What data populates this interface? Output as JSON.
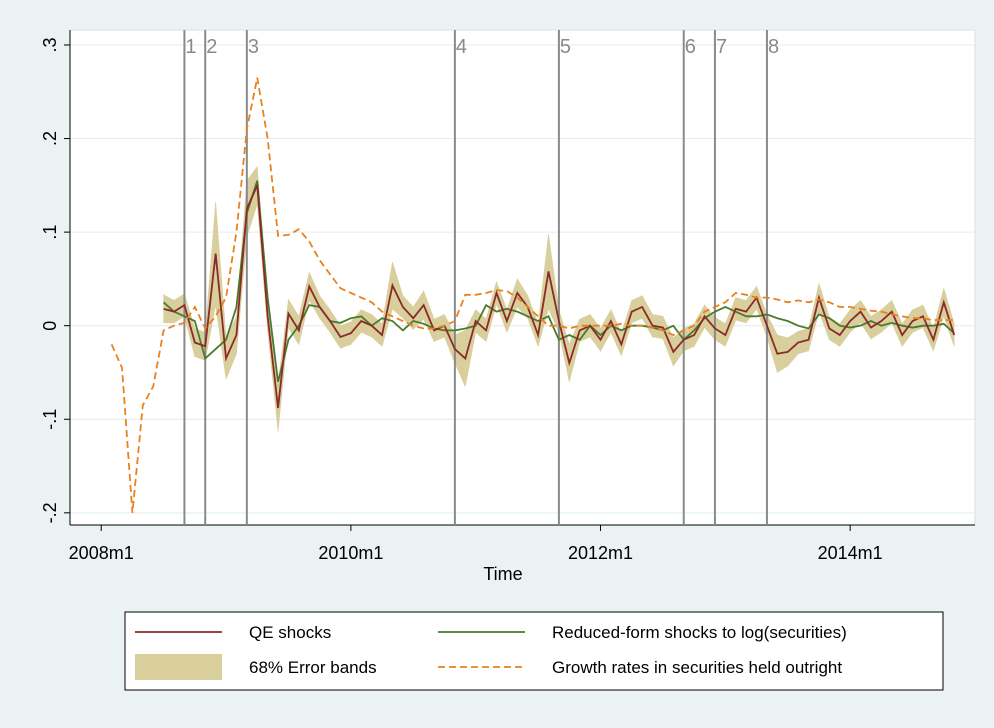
{
  "chart_data": {
    "type": "line",
    "x_label": "Time",
    "x": [
      "2008m2",
      "2008m3",
      "2008m4",
      "2008m5",
      "2008m6",
      "2008m7",
      "2008m8",
      "2008m9",
      "2008m10",
      "2008m11",
      "2008m12",
      "2009m1",
      "2009m2",
      "2009m3",
      "2009m4",
      "2009m5",
      "2009m6",
      "2009m7",
      "2009m8",
      "2009m9",
      "2009m10",
      "2009m11",
      "2009m12",
      "2010m1",
      "2010m2",
      "2010m3",
      "2010m4",
      "2010m5",
      "2010m6",
      "2010m7",
      "2010m8",
      "2010m9",
      "2010m10",
      "2010m11",
      "2010m12",
      "2011m1",
      "2011m2",
      "2011m3",
      "2011m4",
      "2011m5",
      "2011m6",
      "2011m7",
      "2011m8",
      "2011m9",
      "2011m10",
      "2011m11",
      "2011m12",
      "2012m1",
      "2012m2",
      "2012m3",
      "2012m4",
      "2012m5",
      "2012m6",
      "2012m7",
      "2012m8",
      "2012m9",
      "2012m10",
      "2012m11",
      "2012m12",
      "2013m1",
      "2013m2",
      "2013m3",
      "2013m4",
      "2013m5",
      "2013m6",
      "2013m7",
      "2013m8",
      "2013m9",
      "2013m10",
      "2013m11",
      "2013m12",
      "2014m1",
      "2014m2",
      "2014m3",
      "2014m4",
      "2014m5",
      "2014m6",
      "2014m7",
      "2014m8",
      "2014m9",
      "2014m10",
      "2014m11"
    ],
    "xlim": [
      "2007m10",
      "2015m1"
    ],
    "xticks": [
      "2008m1",
      "2010m1",
      "2012m1",
      "2014m1"
    ],
    "ylim": [
      -0.213,
      0.316
    ],
    "yticks": [
      {
        "value": -0.2,
        "label": "-.2"
      },
      {
        "value": -0.1,
        "label": "-.1"
      },
      0,
      {
        "value": 0.1,
        "label": ".1"
      },
      {
        "value": 0.2,
        "label": ".2"
      },
      {
        "value": 0.3,
        "label": ".3"
      }
    ],
    "grid": true,
    "series": [
      {
        "name": "QE shocks",
        "color": "#8b2a2a",
        "dash": false,
        "values": [
          null,
          null,
          null,
          null,
          null,
          0.018,
          0.015,
          0.022,
          -0.018,
          -0.022,
          0.077,
          -0.035,
          -0.01,
          0.125,
          0.15,
          0.01,
          -0.088,
          0.013,
          -0.005,
          0.042,
          0.02,
          0.005,
          -0.012,
          -0.008,
          0.005,
          0.0,
          -0.01,
          0.043,
          0.02,
          0.008,
          0.022,
          -0.005,
          0.0,
          -0.025,
          -0.035,
          0.005,
          -0.005,
          0.035,
          0.005,
          0.035,
          0.02,
          -0.01,
          0.058,
          0.005,
          -0.04,
          -0.005,
          0.0,
          -0.015,
          0.005,
          -0.02,
          0.015,
          0.02,
          0.0,
          -0.002,
          -0.028,
          -0.015,
          -0.01,
          0.01,
          -0.003,
          -0.01,
          0.018,
          0.015,
          0.03,
          0.0,
          -0.03,
          -0.028,
          -0.018,
          -0.015,
          0.03,
          -0.003,
          -0.01,
          0.005,
          0.015,
          -0.002,
          0.005,
          0.015,
          -0.01,
          0.005,
          0.01,
          -0.015,
          0.025,
          -0.01
        ]
      },
      {
        "name": "Reduced-form shocks to log(securities)",
        "color": "#4a7a2e",
        "dash": false,
        "values": [
          null,
          null,
          null,
          null,
          null,
          0.025,
          0.015,
          0.01,
          0.005,
          -0.035,
          -0.025,
          -0.015,
          0.02,
          0.12,
          0.155,
          0.03,
          -0.06,
          -0.015,
          0.0,
          0.022,
          0.02,
          0.005,
          0.003,
          0.008,
          0.01,
          0.0,
          0.008,
          0.005,
          -0.005,
          0.005,
          0.002,
          -0.003,
          -0.005,
          -0.005,
          -0.003,
          0.0,
          0.022,
          0.015,
          0.018,
          0.015,
          0.01,
          0.005,
          0.01,
          -0.015,
          -0.01,
          -0.015,
          0.0,
          -0.01,
          0.0,
          -0.005,
          0.0,
          0.0,
          -0.002,
          -0.005,
          0.0,
          -0.015,
          -0.005,
          0.008,
          0.015,
          0.02,
          0.015,
          0.01,
          0.01,
          0.012,
          0.008,
          0.005,
          0.0,
          -0.003,
          0.012,
          0.008,
          0.0,
          -0.002,
          0.0,
          0.005,
          0.0,
          0.003,
          0.0,
          -0.002,
          0.0,
          0.0,
          0.002,
          -0.008
        ]
      },
      {
        "name": "Growth rates in securities held outright",
        "color": "#e8821e",
        "dash": true,
        "values": [
          -0.02,
          -0.045,
          -0.2,
          -0.085,
          -0.065,
          -0.005,
          0.0,
          0.003,
          0.02,
          -0.003,
          0.01,
          0.03,
          0.1,
          0.21,
          0.265,
          0.2,
          0.096,
          0.097,
          0.103,
          0.09,
          0.07,
          0.055,
          0.04,
          0.035,
          0.03,
          0.025,
          0.015,
          0.01,
          0.005,
          0.0,
          -0.003,
          -0.003,
          0.0,
          0.005,
          0.033,
          0.033,
          0.035,
          0.038,
          0.037,
          0.03,
          0.02,
          0.01,
          0.0,
          0.0,
          -0.003,
          0.0,
          0.0,
          0.0,
          0.0,
          0.002,
          0.0,
          0.0,
          -0.002,
          -0.005,
          -0.01,
          -0.005,
          0.0,
          0.015,
          0.02,
          0.025,
          0.035,
          0.033,
          0.03,
          0.03,
          0.028,
          0.025,
          0.027,
          0.025,
          0.028,
          0.025,
          0.02,
          0.02,
          0.018,
          0.016,
          0.015,
          0.012,
          0.01,
          0.008,
          0.008,
          0.006,
          0.006,
          0.006
        ]
      }
    ],
    "error_band": {
      "name": "68% Error bands",
      "color": "#d8cf9c",
      "errors": [
        null,
        null,
        null,
        null,
        null,
        0.015,
        0.012,
        0.012,
        0.015,
        0.015,
        0.055,
        0.022,
        0.02,
        0.03,
        0.02,
        0.015,
        0.025,
        0.015,
        0.015,
        0.015,
        0.012,
        0.012,
        0.012,
        0.012,
        0.012,
        0.012,
        0.012,
        0.025,
        0.012,
        0.012,
        0.015,
        0.012,
        0.012,
        0.015,
        0.03,
        0.012,
        0.012,
        0.012,
        0.012,
        0.015,
        0.012,
        0.012,
        0.04,
        0.012,
        0.02,
        0.012,
        0.012,
        0.012,
        0.012,
        0.012,
        0.012,
        0.012,
        0.012,
        0.012,
        0.015,
        0.012,
        0.012,
        0.012,
        0.012,
        0.012,
        0.012,
        0.012,
        0.012,
        0.012,
        0.02,
        0.015,
        0.012,
        0.012,
        0.015,
        0.012,
        0.012,
        0.012,
        0.012,
        0.012,
        0.012,
        0.012,
        0.012,
        0.012,
        0.012,
        0.012,
        0.015,
        0.012
      ]
    },
    "events": [
      {
        "label": "1",
        "date": "2008m9"
      },
      {
        "label": "2",
        "date": "2008m11"
      },
      {
        "label": "3",
        "date": "2009m3"
      },
      {
        "label": "4",
        "date": "2010m11"
      },
      {
        "label": "5",
        "date": "2011m9"
      },
      {
        "label": "6",
        "date": "2012m9"
      },
      {
        "label": "7",
        "date": "2012m12"
      },
      {
        "label": "8",
        "date": "2013m5"
      }
    ]
  }
}
